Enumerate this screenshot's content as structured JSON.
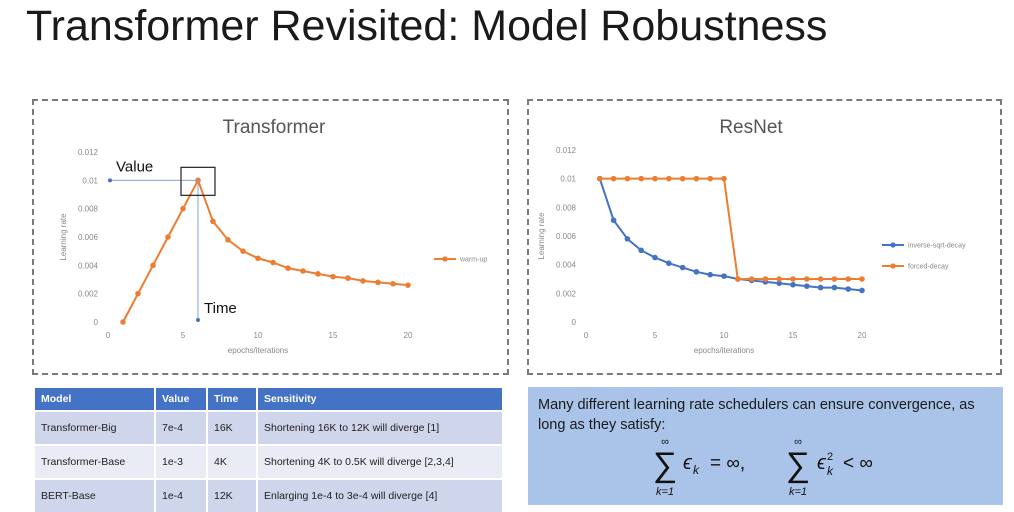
{
  "slide": {
    "title": "Transformer Revisited: Model Robustness"
  },
  "chart_data": [
    {
      "type": "line",
      "title": "Transformer",
      "xlabel": "epochs/iterations",
      "ylabel": "Learning rate",
      "xlim": [
        0,
        20
      ],
      "ylim": [
        0,
        0.012
      ],
      "x_ticks": [
        "0",
        "5",
        "10",
        "15",
        "20"
      ],
      "y_ticks": [
        "0",
        "0.002",
        "0.004",
        "0.006",
        "0.008",
        "0.01",
        "0.012"
      ],
      "legend_position": "right",
      "series": [
        {
          "name": "warm-up",
          "color": "#ed7d31",
          "x": [
            1,
            2,
            3,
            4,
            5,
            6,
            7,
            8,
            9,
            10,
            11,
            12,
            13,
            14,
            15,
            16,
            17,
            18,
            19,
            20
          ],
          "values": [
            0,
            0.002,
            0.004,
            0.006,
            0.008,
            0.01,
            0.0071,
            0.0058,
            0.005,
            0.0045,
            0.0042,
            0.0038,
            0.0036,
            0.0034,
            0.0032,
            0.0031,
            0.0029,
            0.0028,
            0.0027,
            0.0026
          ]
        }
      ],
      "annotations": {
        "value_label": "Value",
        "time_label": "Time"
      }
    },
    {
      "type": "line",
      "title": "ResNet",
      "xlabel": "epochs/iterations",
      "ylabel": "Learning rate",
      "xlim": [
        0,
        20
      ],
      "ylim": [
        0,
        0.012
      ],
      "x_ticks": [
        "0",
        "5",
        "10",
        "15",
        "20"
      ],
      "y_ticks": [
        "0",
        "0.002",
        "0.004",
        "0.006",
        "0.008",
        "0.01",
        "0.012"
      ],
      "legend_position": "right",
      "series": [
        {
          "name": "inverse-sqrt-decay",
          "color": "#4472c4",
          "x": [
            1,
            2,
            3,
            4,
            5,
            6,
            7,
            8,
            9,
            10,
            11,
            12,
            13,
            14,
            15,
            16,
            17,
            18,
            19,
            20
          ],
          "values": [
            0.01,
            0.0071,
            0.0058,
            0.005,
            0.0045,
            0.0041,
            0.0038,
            0.0035,
            0.0033,
            0.0032,
            0.003,
            0.0029,
            0.0028,
            0.0027,
            0.0026,
            0.0025,
            0.0024,
            0.0024,
            0.0023,
            0.0022
          ]
        },
        {
          "name": "forced-decay",
          "color": "#ed7d31",
          "x": [
            1,
            2,
            3,
            4,
            5,
            6,
            7,
            8,
            9,
            10,
            11,
            12,
            13,
            14,
            15,
            16,
            17,
            18,
            19,
            20
          ],
          "values": [
            0.01,
            0.01,
            0.01,
            0.01,
            0.01,
            0.01,
            0.01,
            0.01,
            0.01,
            0.01,
            0.003,
            0.003,
            0.003,
            0.003,
            0.003,
            0.003,
            0.003,
            0.003,
            0.003,
            0.003
          ]
        }
      ]
    }
  ],
  "table": {
    "headers": [
      "Model",
      "Value",
      "Time",
      "Sensitivity"
    ],
    "rows": [
      [
        "Transformer-Big",
        "7e-4",
        "16K",
        "Shortening 16K to 12K will diverge [1]"
      ],
      [
        "Transformer-Base",
        "1e-3",
        "4K",
        "Shortening 4K to 0.5K will diverge [2,3,4]"
      ],
      [
        "BERT-Base",
        "1e-4",
        "12K",
        "Enlarging 1e-4 to 3e-4 will diverge [4]"
      ]
    ]
  },
  "note": {
    "text": "Many different learning rate schedulers can ensure convergence, as long as they satisfy:",
    "formula": {
      "sum_upper": "∞",
      "sum_lower": "k=1",
      "sum_symbol": "∑",
      "term1": "ϵ",
      "term1_sub": "k",
      "term1_rhs": "= ∞,",
      "term2": "ϵ",
      "term2_sub": "k",
      "term2_sup": "2",
      "term2_rhs": "< ∞"
    }
  }
}
